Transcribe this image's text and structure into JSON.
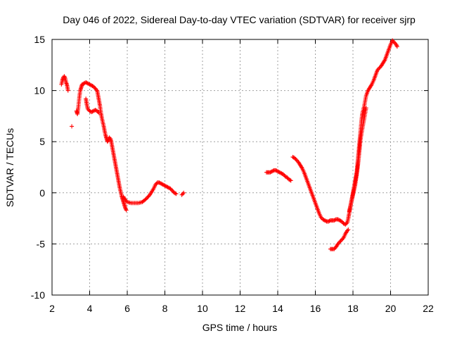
{
  "chart_data": {
    "type": "scatter",
    "title": "Day 046 of 2022, Sidereal Day-to-day VTEC variation (SDTVAR) for receiver sjrp",
    "xlabel": "GPS time / hours",
    "ylabel": "SDTVAR / TECUs",
    "xlim": [
      2,
      22
    ],
    "ylim": [
      -10,
      15
    ],
    "xticks": [
      2,
      4,
      6,
      8,
      10,
      12,
      14,
      16,
      18,
      20,
      22
    ],
    "yticks": [
      -10,
      -5,
      0,
      5,
      10,
      15
    ],
    "grid": true,
    "marker": "plus",
    "color": "#ff0000",
    "series": [
      {
        "name": "SDTVAR",
        "segments": [
          [
            [
              2.5,
              10.6
            ],
            [
              2.55,
              11.0
            ],
            [
              2.6,
              11.3
            ],
            [
              2.65,
              11.4
            ],
            [
              2.7,
              11.2
            ],
            [
              2.75,
              10.8
            ],
            [
              2.8,
              10.5
            ],
            [
              2.85,
              10.0
            ]
          ],
          [
            [
              3.05,
              6.5
            ]
          ],
          [
            [
              3.3,
              8.0
            ],
            [
              3.35,
              7.7
            ],
            [
              3.4,
              8.4
            ],
            [
              3.45,
              9.3
            ],
            [
              3.5,
              10.0
            ],
            [
              3.55,
              10.3
            ],
            [
              3.6,
              10.6
            ],
            [
              3.7,
              10.7
            ],
            [
              3.8,
              10.8
            ],
            [
              3.9,
              10.7
            ],
            [
              4.0,
              10.6
            ],
            [
              4.1,
              10.5
            ],
            [
              4.2,
              10.4
            ],
            [
              4.3,
              10.2
            ],
            [
              4.4,
              10.0
            ],
            [
              4.45,
              9.5
            ],
            [
              4.5,
              9.0
            ],
            [
              4.55,
              8.5
            ],
            [
              4.6,
              7.8
            ],
            [
              4.65,
              7.3
            ],
            [
              4.7,
              6.9
            ],
            [
              4.75,
              6.5
            ],
            [
              4.8,
              6.0
            ],
            [
              4.85,
              5.6
            ],
            [
              4.9,
              5.3
            ],
            [
              4.95,
              5.0
            ],
            [
              5.0,
              5.2
            ],
            [
              5.05,
              5.4
            ],
            [
              5.1,
              5.3
            ],
            [
              5.15,
              5.0
            ],
            [
              5.2,
              4.5
            ],
            [
              5.25,
              4.0
            ],
            [
              5.3,
              3.5
            ],
            [
              5.35,
              3.0
            ],
            [
              5.4,
              2.5
            ],
            [
              5.45,
              2.0
            ],
            [
              5.5,
              1.5
            ],
            [
              5.55,
              1.0
            ],
            [
              5.6,
              0.5
            ],
            [
              5.65,
              0.1
            ],
            [
              5.7,
              -0.3
            ],
            [
              5.75,
              -0.6
            ],
            [
              5.8,
              -0.9
            ],
            [
              5.85,
              -1.2
            ],
            [
              5.9,
              -1.5
            ],
            [
              5.95,
              -1.7
            ]
          ],
          [
            [
              3.8,
              9.2
            ],
            [
              3.85,
              8.6
            ],
            [
              3.9,
              8.2
            ],
            [
              4.0,
              8.0
            ],
            [
              4.1,
              7.9
            ],
            [
              4.2,
              8.0
            ],
            [
              4.3,
              8.1
            ],
            [
              4.4,
              8.0
            ],
            [
              4.5,
              7.8
            ]
          ],
          [
            [
              5.8,
              -0.4
            ],
            [
              5.9,
              -0.7
            ],
            [
              6.0,
              -0.9
            ],
            [
              6.2,
              -1.0
            ],
            [
              6.4,
              -1.0
            ],
            [
              6.6,
              -1.0
            ],
            [
              6.8,
              -0.9
            ],
            [
              7.0,
              -0.6
            ],
            [
              7.2,
              -0.2
            ],
            [
              7.4,
              0.4
            ],
            [
              7.5,
              0.8
            ],
            [
              7.6,
              1.0
            ],
            [
              7.7,
              1.0
            ],
            [
              7.8,
              0.9
            ],
            [
              7.9,
              0.8
            ],
            [
              8.0,
              0.7
            ],
            [
              8.1,
              0.6
            ],
            [
              8.2,
              0.5
            ],
            [
              8.3,
              0.4
            ],
            [
              8.4,
              0.2
            ],
            [
              8.5,
              0.0
            ],
            [
              8.6,
              -0.1
            ]
          ],
          [
            [
              8.9,
              -0.2
            ],
            [
              8.95,
              -0.1
            ],
            [
              9.0,
              0.0
            ]
          ],
          [
            [
              13.4,
              2.0
            ],
            [
              13.5,
              2.0
            ],
            [
              13.6,
              2.0
            ],
            [
              13.7,
              2.1
            ],
            [
              13.8,
              2.2
            ],
            [
              13.9,
              2.2
            ],
            [
              14.0,
              2.1
            ],
            [
              14.1,
              2.0
            ],
            [
              14.2,
              1.9
            ],
            [
              14.3,
              1.8
            ],
            [
              14.4,
              1.6
            ],
            [
              14.5,
              1.5
            ],
            [
              14.6,
              1.3
            ],
            [
              14.7,
              1.2
            ]
          ],
          [
            [
              14.8,
              3.5
            ],
            [
              14.9,
              3.4
            ],
            [
              15.0,
              3.2
            ],
            [
              15.1,
              3.0
            ],
            [
              15.2,
              2.7
            ],
            [
              15.3,
              2.4
            ],
            [
              15.4,
              2.0
            ],
            [
              15.5,
              1.5
            ],
            [
              15.6,
              1.0
            ],
            [
              15.7,
              0.5
            ],
            [
              15.8,
              0.0
            ],
            [
              15.9,
              -0.5
            ],
            [
              16.0,
              -1.0
            ],
            [
              16.1,
              -1.5
            ],
            [
              16.2,
              -2.0
            ],
            [
              16.3,
              -2.4
            ],
            [
              16.4,
              -2.6
            ],
            [
              16.5,
              -2.7
            ],
            [
              16.6,
              -2.8
            ],
            [
              16.7,
              -2.8
            ],
            [
              16.8,
              -2.7
            ],
            [
              16.9,
              -2.7
            ],
            [
              17.0,
              -2.7
            ],
            [
              17.1,
              -2.6
            ],
            [
              17.2,
              -2.6
            ],
            [
              17.3,
              -2.7
            ],
            [
              17.4,
              -2.8
            ],
            [
              17.5,
              -3.0
            ],
            [
              17.6,
              -3.1
            ],
            [
              17.7,
              -2.9
            ],
            [
              17.75,
              -2.5
            ],
            [
              17.8,
              -2.0
            ],
            [
              17.85,
              -1.5
            ],
            [
              17.9,
              -1.0
            ],
            [
              17.95,
              -0.5
            ],
            [
              18.0,
              0.0
            ],
            [
              18.05,
              0.5
            ],
            [
              18.1,
              1.0
            ],
            [
              18.15,
              1.5
            ],
            [
              18.2,
              2.0
            ],
            [
              18.25,
              3.0
            ],
            [
              18.3,
              4.0
            ],
            [
              18.35,
              5.0
            ],
            [
              18.4,
              6.0
            ],
            [
              18.45,
              7.0
            ],
            [
              18.5,
              7.8
            ],
            [
              18.6,
              8.5
            ],
            [
              18.7,
              9.5
            ],
            [
              18.8,
              10.0
            ],
            [
              18.9,
              10.3
            ],
            [
              19.0,
              10.6
            ],
            [
              19.1,
              11.0
            ],
            [
              19.2,
              11.5
            ],
            [
              19.3,
              12.0
            ],
            [
              19.4,
              12.2
            ],
            [
              19.5,
              12.4
            ],
            [
              19.6,
              12.7
            ],
            [
              19.7,
              13.0
            ],
            [
              19.8,
              13.5
            ],
            [
              19.9,
              14.0
            ],
            [
              20.0,
              14.5
            ],
            [
              20.1,
              14.9
            ],
            [
              20.2,
              14.7
            ],
            [
              20.3,
              14.5
            ],
            [
              20.35,
              14.3
            ]
          ],
          [
            [
              16.8,
              -5.5
            ],
            [
              16.9,
              -5.5
            ],
            [
              17.0,
              -5.5
            ],
            [
              17.1,
              -5.3
            ],
            [
              17.2,
              -5.0
            ],
            [
              17.3,
              -4.8
            ],
            [
              17.4,
              -4.6
            ],
            [
              17.5,
              -4.4
            ],
            [
              17.6,
              -4.0
            ],
            [
              17.7,
              -3.7
            ],
            [
              17.75,
              -3.6
            ]
          ],
          [
            [
              17.8,
              -1.8
            ],
            [
              17.9,
              -1.0
            ],
            [
              18.0,
              -0.2
            ],
            [
              18.1,
              0.6
            ],
            [
              18.15,
              1.2
            ],
            [
              18.2,
              1.8
            ],
            [
              18.25,
              2.5
            ],
            [
              18.3,
              3.3
            ],
            [
              18.35,
              4.2
            ],
            [
              18.4,
              5.2
            ],
            [
              18.5,
              6.3
            ],
            [
              18.6,
              7.3
            ],
            [
              18.7,
              8.3
            ]
          ]
        ]
      }
    ]
  }
}
